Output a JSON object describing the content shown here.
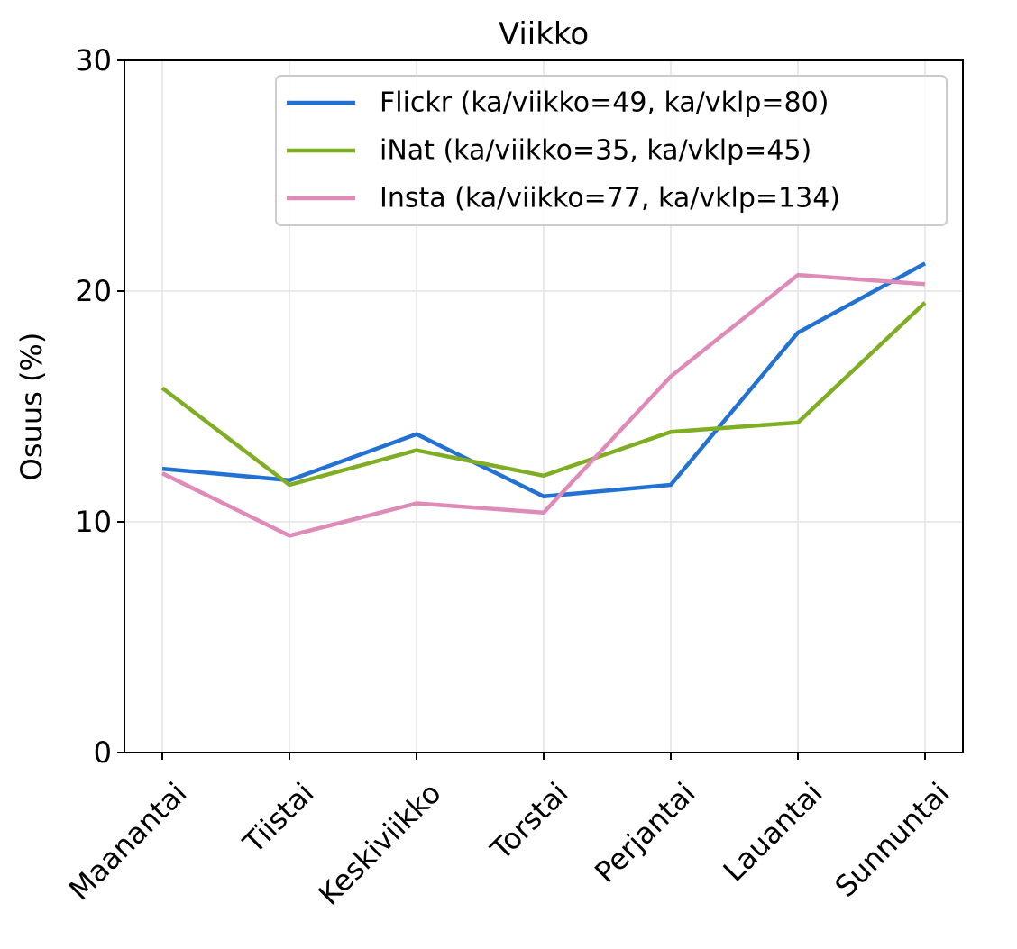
{
  "chart_data": {
    "type": "line",
    "title": "Viikko",
    "xlabel": "",
    "ylabel": "Osuus (%)",
    "categories": [
      "Maanantai",
      "Tiistai",
      "Keskiviikko",
      "Torstai",
      "Perjantai",
      "Lauantai",
      "Sunnuntai"
    ],
    "ylim": [
      0,
      30
    ],
    "yticks": [
      0,
      10,
      20,
      30
    ],
    "grid": true,
    "legend_position": "top-right",
    "series": [
      {
        "name": "Flickr (ka/viikko=49, ka/vklp=80)",
        "color": "#2372d2",
        "values": [
          12.3,
          11.8,
          13.8,
          11.1,
          11.6,
          18.2,
          21.2
        ]
      },
      {
        "name": "iNat (ka/viikko=35, ka/vklp=45)",
        "color": "#7fae25",
        "values": [
          15.8,
          11.6,
          13.1,
          12.0,
          13.9,
          14.3,
          19.5
        ]
      },
      {
        "name": "Insta (ka/viikko=77, ka/vklp=134)",
        "color": "#de8cb7",
        "values": [
          12.1,
          9.4,
          10.8,
          10.4,
          16.3,
          20.7,
          20.3
        ]
      }
    ]
  }
}
